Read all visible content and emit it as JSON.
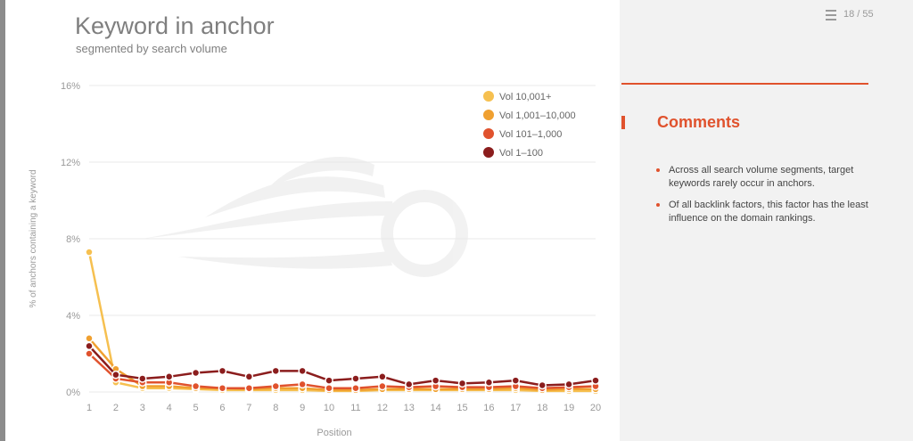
{
  "slide": {
    "title": "Keyword in anchor",
    "subtitle": "segmented by search volume",
    "page_indicator": "18 / 55",
    "menu_icon": "hamburger-menu-icon"
  },
  "comments": {
    "title": "Comments",
    "bullets": [
      "Across all search volume segments, target keywords rarely occur in anchors.",
      "Of all backlink factors, this factor has the least influence on the domain rankings."
    ]
  },
  "colors": {
    "accent": "#e0522d",
    "vol_10001_plus": "#f6c050",
    "vol_1001_10000": "#f0a030",
    "vol_101_1000": "#e0522d",
    "vol_1_100": "#8b1d1d"
  },
  "chart_data": {
    "type": "line",
    "xlabel": "Position",
    "ylabel": "% of anchors containing a keyword",
    "x": [
      1,
      2,
      3,
      4,
      5,
      6,
      7,
      8,
      9,
      10,
      11,
      12,
      13,
      14,
      15,
      16,
      17,
      18,
      19,
      20
    ],
    "ylim": [
      0,
      16
    ],
    "yticks": [
      "0%",
      "4%",
      "8%",
      "12%",
      "16%"
    ],
    "ytick_values": [
      0,
      4,
      8,
      12,
      16
    ],
    "grid": true,
    "legend_position": "top-right",
    "series": [
      {
        "name": "Vol 10,001+",
        "color": "#f6c050",
        "values": [
          7.3,
          0.5,
          0.2,
          0.2,
          0.15,
          0.1,
          0.1,
          0.1,
          0.1,
          0.05,
          0.05,
          0.1,
          0.1,
          0.1,
          0.1,
          0.1,
          0.1,
          0.05,
          0.05,
          0.05
        ]
      },
      {
        "name": "Vol 1,001–10,000",
        "color": "#f0a030",
        "values": [
          2.8,
          1.2,
          0.3,
          0.3,
          0.2,
          0.2,
          0.15,
          0.2,
          0.2,
          0.1,
          0.1,
          0.15,
          0.15,
          0.15,
          0.15,
          0.15,
          0.2,
          0.1,
          0.15,
          0.15
        ]
      },
      {
        "name": "Vol 101–1,000",
        "color": "#e0522d",
        "values": [
          2.0,
          0.7,
          0.5,
          0.5,
          0.3,
          0.2,
          0.2,
          0.3,
          0.4,
          0.2,
          0.2,
          0.3,
          0.25,
          0.3,
          0.25,
          0.25,
          0.3,
          0.2,
          0.25,
          0.3
        ]
      },
      {
        "name": "Vol 1–100",
        "color": "#8b1d1d",
        "values": [
          2.4,
          0.9,
          0.7,
          0.8,
          1.0,
          1.1,
          0.8,
          1.1,
          1.1,
          0.6,
          0.7,
          0.8,
          0.4,
          0.6,
          0.45,
          0.5,
          0.6,
          0.35,
          0.4,
          0.6
        ]
      }
    ]
  }
}
